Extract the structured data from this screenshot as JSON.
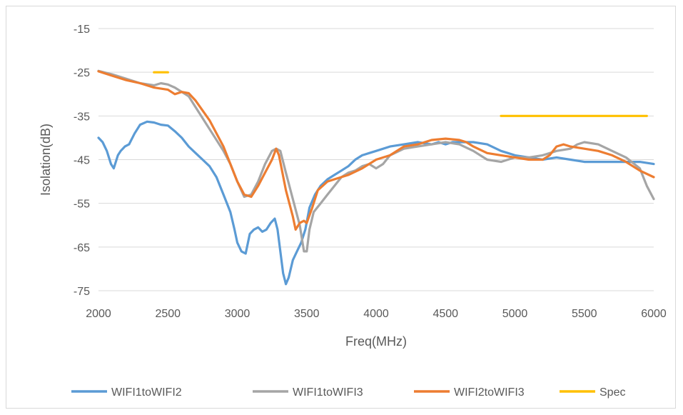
{
  "chart_data": {
    "type": "line",
    "title": "",
    "xlabel": "Freq(MHz)",
    "ylabel": "Isolation(dB)",
    "xlim": [
      2000,
      6000
    ],
    "ylim": [
      -75,
      -15
    ],
    "xticks": [
      "2000",
      "2500",
      "3000",
      "3500",
      "4000",
      "4500",
      "5000",
      "5500",
      "6000"
    ],
    "yticks": [
      "-15",
      "-25",
      "-35",
      "-45",
      "-55",
      "-65",
      "-75"
    ],
    "grid": "horizontal",
    "legend_position": "bottom",
    "series": [
      {
        "name": "WIFI1toWIFI2",
        "color": "#5B9BD5",
        "points": [
          [
            2000,
            -40
          ],
          [
            2030,
            -41
          ],
          [
            2060,
            -43
          ],
          [
            2090,
            -46
          ],
          [
            2110,
            -47
          ],
          [
            2140,
            -44
          ],
          [
            2160,
            -43
          ],
          [
            2190,
            -42
          ],
          [
            2220,
            -41.5
          ],
          [
            2260,
            -39
          ],
          [
            2300,
            -37
          ],
          [
            2350,
            -36.3
          ],
          [
            2400,
            -36.5
          ],
          [
            2450,
            -37
          ],
          [
            2500,
            -37.2
          ],
          [
            2550,
            -38.5
          ],
          [
            2600,
            -40
          ],
          [
            2650,
            -42
          ],
          [
            2700,
            -43.5
          ],
          [
            2750,
            -45
          ],
          [
            2800,
            -46.5
          ],
          [
            2850,
            -49
          ],
          [
            2900,
            -53
          ],
          [
            2950,
            -57
          ],
          [
            2980,
            -61
          ],
          [
            3000,
            -64
          ],
          [
            3030,
            -66
          ],
          [
            3060,
            -66.5
          ],
          [
            3090,
            -62
          ],
          [
            3120,
            -61
          ],
          [
            3150,
            -60.5
          ],
          [
            3180,
            -61.5
          ],
          [
            3210,
            -61
          ],
          [
            3240,
            -59.5
          ],
          [
            3270,
            -58.5
          ],
          [
            3290,
            -61
          ],
          [
            3310,
            -66
          ],
          [
            3330,
            -71
          ],
          [
            3350,
            -73.5
          ],
          [
            3370,
            -72
          ],
          [
            3400,
            -68
          ],
          [
            3430,
            -66
          ],
          [
            3460,
            -64
          ],
          [
            3490,
            -61
          ],
          [
            3520,
            -56
          ],
          [
            3560,
            -53
          ],
          [
            3600,
            -51
          ],
          [
            3650,
            -49.5
          ],
          [
            3700,
            -48.5
          ],
          [
            3750,
            -47.5
          ],
          [
            3800,
            -46.5
          ],
          [
            3850,
            -45
          ],
          [
            3900,
            -44
          ],
          [
            3950,
            -43.5
          ],
          [
            4000,
            -43
          ],
          [
            4100,
            -42
          ],
          [
            4200,
            -41.5
          ],
          [
            4300,
            -41
          ],
          [
            4400,
            -41.5
          ],
          [
            4450,
            -41
          ],
          [
            4500,
            -41.5
          ],
          [
            4550,
            -41
          ],
          [
            4600,
            -41
          ],
          [
            4700,
            -41
          ],
          [
            4800,
            -41.5
          ],
          [
            4900,
            -43
          ],
          [
            4950,
            -43.5
          ],
          [
            5000,
            -44
          ],
          [
            5100,
            -44.5
          ],
          [
            5200,
            -45
          ],
          [
            5300,
            -44.5
          ],
          [
            5400,
            -45
          ],
          [
            5500,
            -45.5
          ],
          [
            5600,
            -45.5
          ],
          [
            5700,
            -45.5
          ],
          [
            5800,
            -45.5
          ],
          [
            5900,
            -45.5
          ],
          [
            6000,
            -46
          ]
        ]
      },
      {
        "name": "WIFI1toWIFI3",
        "color": "#A5A5A5",
        "points": [
          [
            2000,
            -24.7
          ],
          [
            2100,
            -25.5
          ],
          [
            2200,
            -26.5
          ],
          [
            2300,
            -27.5
          ],
          [
            2400,
            -28
          ],
          [
            2450,
            -27.5
          ],
          [
            2500,
            -27.8
          ],
          [
            2550,
            -28.5
          ],
          [
            2600,
            -29.5
          ],
          [
            2650,
            -30.5
          ],
          [
            2700,
            -33
          ],
          [
            2800,
            -38
          ],
          [
            2900,
            -43
          ],
          [
            2950,
            -46
          ],
          [
            3000,
            -50
          ],
          [
            3050,
            -53.5
          ],
          [
            3100,
            -53
          ],
          [
            3150,
            -50
          ],
          [
            3200,
            -46
          ],
          [
            3250,
            -43
          ],
          [
            3280,
            -42.5
          ],
          [
            3310,
            -43
          ],
          [
            3350,
            -48
          ],
          [
            3400,
            -54
          ],
          [
            3450,
            -60
          ],
          [
            3480,
            -66
          ],
          [
            3500,
            -66
          ],
          [
            3520,
            -61
          ],
          [
            3550,
            -57
          ],
          [
            3600,
            -55
          ],
          [
            3650,
            -53
          ],
          [
            3700,
            -51
          ],
          [
            3750,
            -49
          ],
          [
            3800,
            -48
          ],
          [
            3850,
            -47.5
          ],
          [
            3900,
            -46.5
          ],
          [
            3950,
            -46
          ],
          [
            4000,
            -47
          ],
          [
            4050,
            -46
          ],
          [
            4100,
            -44
          ],
          [
            4200,
            -42.5
          ],
          [
            4300,
            -42
          ],
          [
            4400,
            -41.5
          ],
          [
            4500,
            -41
          ],
          [
            4600,
            -41.5
          ],
          [
            4700,
            -43
          ],
          [
            4800,
            -45
          ],
          [
            4900,
            -45.5
          ],
          [
            5000,
            -44.5
          ],
          [
            5100,
            -44.5
          ],
          [
            5200,
            -44
          ],
          [
            5300,
            -43
          ],
          [
            5400,
            -42.5
          ],
          [
            5450,
            -41.5
          ],
          [
            5500,
            -41
          ],
          [
            5600,
            -41.5
          ],
          [
            5700,
            -43
          ],
          [
            5800,
            -44.5
          ],
          [
            5900,
            -47
          ],
          [
            5950,
            -51
          ],
          [
            6000,
            -54
          ]
        ]
      },
      {
        "name": "WIFI2toWIFI3",
        "color": "#ED7D31",
        "points": [
          [
            2000,
            -24.8
          ],
          [
            2100,
            -25.8
          ],
          [
            2200,
            -26.8
          ],
          [
            2300,
            -27.5
          ],
          [
            2400,
            -28.5
          ],
          [
            2500,
            -29
          ],
          [
            2550,
            -30
          ],
          [
            2600,
            -29.5
          ],
          [
            2650,
            -29.8
          ],
          [
            2700,
            -31.5
          ],
          [
            2800,
            -36
          ],
          [
            2900,
            -42
          ],
          [
            2950,
            -46
          ],
          [
            3000,
            -50
          ],
          [
            3050,
            -53
          ],
          [
            3100,
            -53.5
          ],
          [
            3150,
            -51
          ],
          [
            3200,
            -48
          ],
          [
            3250,
            -45
          ],
          [
            3280,
            -42.5
          ],
          [
            3300,
            -44
          ],
          [
            3350,
            -52
          ],
          [
            3400,
            -58
          ],
          [
            3420,
            -61
          ],
          [
            3450,
            -59.5
          ],
          [
            3480,
            -59
          ],
          [
            3500,
            -59.5
          ],
          [
            3540,
            -56
          ],
          [
            3580,
            -52
          ],
          [
            3650,
            -50
          ],
          [
            3700,
            -49.5
          ],
          [
            3800,
            -48.5
          ],
          [
            3900,
            -47
          ],
          [
            4000,
            -45
          ],
          [
            4100,
            -44
          ],
          [
            4200,
            -42
          ],
          [
            4300,
            -41.5
          ],
          [
            4400,
            -40.5
          ],
          [
            4500,
            -40.2
          ],
          [
            4600,
            -40.5
          ],
          [
            4650,
            -41
          ],
          [
            4700,
            -42
          ],
          [
            4800,
            -43.5
          ],
          [
            4900,
            -44
          ],
          [
            5000,
            -44.5
          ],
          [
            5100,
            -45
          ],
          [
            5200,
            -45
          ],
          [
            5250,
            -44
          ],
          [
            5300,
            -42
          ],
          [
            5350,
            -41.5
          ],
          [
            5400,
            -42
          ],
          [
            5500,
            -42.5
          ],
          [
            5600,
            -43
          ],
          [
            5700,
            -44
          ],
          [
            5800,
            -45.5
          ],
          [
            5900,
            -47.5
          ],
          [
            6000,
            -49
          ]
        ]
      },
      {
        "name": "Spec",
        "color": "#FFC000",
        "segments": [
          [
            [
              2400,
              -25
            ],
            [
              2500,
              -25
            ]
          ],
          [
            [
              4900,
              -35
            ],
            [
              5950,
              -35
            ]
          ]
        ]
      }
    ]
  }
}
